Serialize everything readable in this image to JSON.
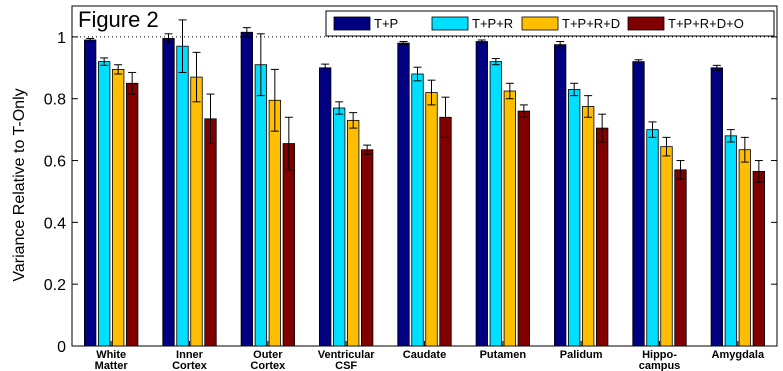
{
  "chart_data": {
    "type": "bar",
    "title": "Figure 2",
    "xlabel": "",
    "ylabel": "Variance Relative to T-Only",
    "ylim": [
      0,
      1.1
    ],
    "yticks": [
      "0",
      "0.2",
      "0.4",
      "0.6",
      "0.8",
      "1"
    ],
    "reference_line": 1,
    "grid": false,
    "legend_position": "top-right",
    "categories": [
      [
        "White",
        "Matter"
      ],
      [
        "Inner",
        "Cortex"
      ],
      [
        "Outer",
        "Cortex"
      ],
      [
        "Ventricular",
        "CSF"
      ],
      [
        "Caudate"
      ],
      [
        "Putamen"
      ],
      [
        "Palidum"
      ],
      [
        "Hippo-",
        "campus"
      ],
      [
        "Amygdala"
      ]
    ],
    "series": [
      {
        "name": "T+P",
        "color": "#000080",
        "values": [
          0.99,
          0.995,
          1.015,
          0.9,
          0.98,
          0.985,
          0.975,
          0.92,
          0.9
        ],
        "errors": [
          0.005,
          0.015,
          0.015,
          0.012,
          0.005,
          0.005,
          0.01,
          0.006,
          0.008
        ]
      },
      {
        "name": "T+P+R",
        "color": "#00dfff",
        "values": [
          0.92,
          0.97,
          0.91,
          0.77,
          0.88,
          0.92,
          0.83,
          0.7,
          0.68
        ],
        "errors": [
          0.012,
          0.085,
          0.1,
          0.02,
          0.022,
          0.01,
          0.02,
          0.025,
          0.02
        ]
      },
      {
        "name": "T+P+R+D",
        "color": "#ffbf00",
        "values": [
          0.895,
          0.87,
          0.795,
          0.73,
          0.82,
          0.825,
          0.775,
          0.645,
          0.635
        ],
        "errors": [
          0.015,
          0.08,
          0.1,
          0.025,
          0.04,
          0.025,
          0.035,
          0.03,
          0.04
        ]
      },
      {
        "name": "T+P+R+D+O",
        "color": "#800000",
        "values": [
          0.85,
          0.735,
          0.655,
          0.635,
          0.74,
          0.76,
          0.705,
          0.57,
          0.565
        ],
        "errors": [
          0.035,
          0.08,
          0.085,
          0.015,
          0.065,
          0.02,
          0.045,
          0.03,
          0.035
        ]
      }
    ]
  }
}
